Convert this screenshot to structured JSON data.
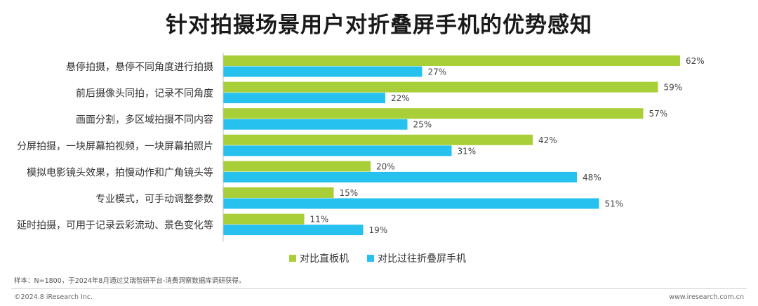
{
  "title": "针对拍摄场景用户对折叠屏手机的优势感知",
  "colors": {
    "series1": "#a8cf38",
    "series2": "#27c1ef",
    "axis": "#bfbfbf"
  },
  "chart_data": {
    "type": "bar",
    "orientation": "horizontal",
    "categories": [
      "悬停拍摄，悬停不同角度进行拍摄",
      "前后摄像头同拍，记录不同角度",
      "画面分割，多区域拍摄不同内容",
      "分屏拍摄，一块屏幕拍视频，一块屏幕拍照片",
      "模拟电影镜头效果，拍慢动作和广角镜头等",
      "专业模式，可手动调整参数",
      "延时拍摄，可用于记录云彩流动、景色变化等"
    ],
    "series": [
      {
        "name": "对比直板机",
        "values": [
          62,
          59,
          57,
          42,
          20,
          15,
          11
        ]
      },
      {
        "name": "对比过往折叠屏手机",
        "values": [
          27,
          22,
          25,
          31,
          48,
          51,
          19
        ]
      }
    ],
    "value_suffix": "%",
    "xlim": [
      0,
      70
    ],
    "grid": false,
    "legend_position": "bottom"
  },
  "footnote": "样本：N=1800，于2024年8月通过艾瑞智研平台-消费洞察数据库调研获得。",
  "copyright": "©2024.8 iResearch Inc.",
  "website": "www.iresearch.com.cn"
}
